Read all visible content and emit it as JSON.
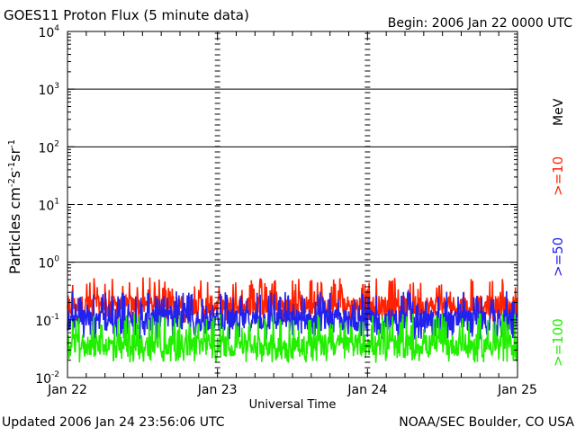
{
  "chart_data": {
    "type": "line",
    "title": "GOES11 Proton Flux (5 minute data)",
    "begin_label": "Begin: 2006 Jan 22 0000 UTC",
    "xlabel": "Universal Time",
    "ylabel_parts": {
      "main": "Particles cm",
      "exp1": "-2",
      "s": "s",
      "exp2": "-1",
      "sr": "sr",
      "exp3": "-1"
    },
    "y_scale": "log",
    "ylim": [
      0.01,
      10000
    ],
    "y_ticks": [
      {
        "base": "10",
        "exp": "-2"
      },
      {
        "base": "10",
        "exp": "-1"
      },
      {
        "base": "10",
        "exp": "0"
      },
      {
        "base": "10",
        "exp": "1"
      },
      {
        "base": "10",
        "exp": "2"
      },
      {
        "base": "10",
        "exp": "3"
      },
      {
        "base": "10",
        "exp": "4"
      }
    ],
    "x_ticks": [
      "Jan 22",
      "Jan 23",
      "Jan 24",
      "Jan 25"
    ],
    "xlim_days": [
      0,
      3
    ],
    "threshold_lines": [
      {
        "value": 1,
        "style": "solid"
      },
      {
        "value": 10,
        "style": "dashed"
      },
      {
        "value": 100,
        "style": "solid"
      },
      {
        "value": 1000,
        "style": "solid"
      }
    ],
    "series": [
      {
        "name": ">=10",
        "color": "#ff2200",
        "typical": 0.17,
        "range": [
          0.09,
          0.55
        ]
      },
      {
        "name": ">=50",
        "color": "#2222ee",
        "typical": 0.095,
        "range": [
          0.045,
          0.32
        ]
      },
      {
        "name": ">=100",
        "color": "#22ee00",
        "typical": 0.035,
        "range": [
          0.018,
          0.13
        ]
      }
    ],
    "unit_label": "MeV",
    "grid": false
  },
  "footer": {
    "updated": "Updated 2006 Jan 24 23:56:06 UTC",
    "source": "NOAA/SEC Boulder, CO USA"
  }
}
